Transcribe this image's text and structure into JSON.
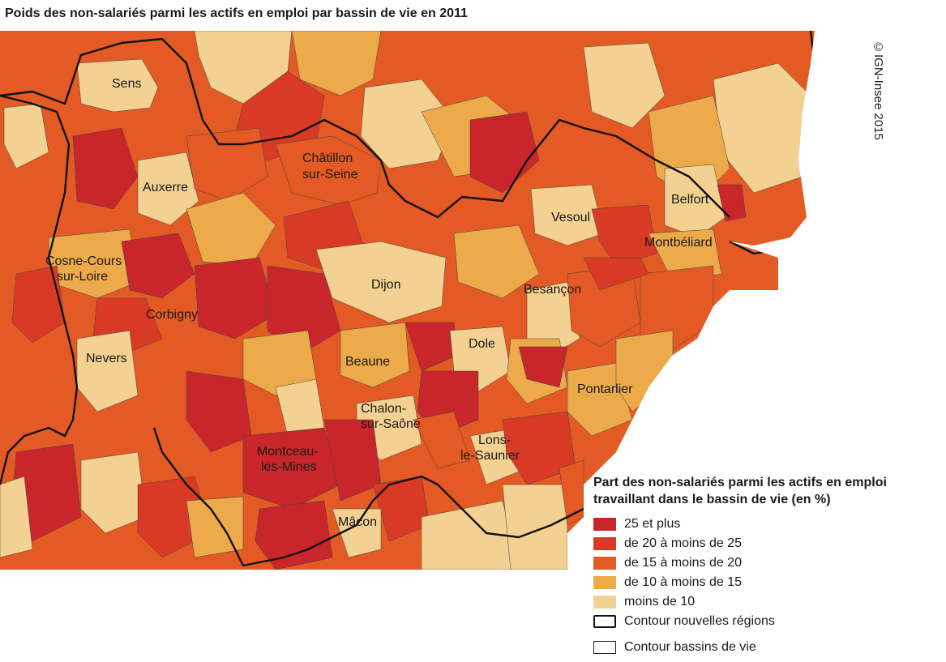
{
  "title": "Poids des non-salariés parmi les actifs en emploi par bassin de vie en 2011",
  "copyright": "©IGN-Insee 2015",
  "colors": {
    "c25": "#c8262a",
    "c20": "#d93a25",
    "c15": "#e45a24",
    "c10": "#ecaa4a",
    "c0": "#f2d193",
    "boundary": "#111111"
  },
  "legend": {
    "title": "Part des non-salariés parmi les actifs en emploi travaillant dans le bassin de vie (en %)",
    "items": [
      {
        "label": "25 et plus",
        "color": "#c8262a"
      },
      {
        "label": "de 20 à moins de 25",
        "color": "#d93a25"
      },
      {
        "label": "de 15 à moins de 20",
        "color": "#e45a24"
      },
      {
        "label": "de 10 à moins de 15",
        "color": "#ecaa4a"
      },
      {
        "label": "moins de 10",
        "color": "#f2d193"
      }
    ],
    "region_contour": "Contour nouvelles régions",
    "basin_contour": "Contour bassins de vie"
  },
  "cities": [
    {
      "id": "sens",
      "label": "Sens"
    },
    {
      "id": "auxerre",
      "label": "Auxerre"
    },
    {
      "id": "chatillon",
      "lines": [
        "Châtillon",
        "sur-Seine"
      ]
    },
    {
      "id": "cosne",
      "lines": [
        "Cosne-Cours",
        "sur-Loire"
      ]
    },
    {
      "id": "dijon",
      "label": "Dijon"
    },
    {
      "id": "corbigny",
      "label": "Corbigny"
    },
    {
      "id": "nevers",
      "label": "Nevers"
    },
    {
      "id": "beaune",
      "label": "Beaune"
    },
    {
      "id": "vesoul",
      "label": "Vesoul"
    },
    {
      "id": "belfort",
      "label": "Belfort"
    },
    {
      "id": "montbeliard",
      "label": "Montbéliard"
    },
    {
      "id": "besancon",
      "label": "Besançon"
    },
    {
      "id": "dole",
      "label": "Dole"
    },
    {
      "id": "pontarlier",
      "label": "Pontarlier"
    },
    {
      "id": "chalon",
      "lines": [
        "Chalon-",
        "sur-Saône"
      ]
    },
    {
      "id": "montceau",
      "lines": [
        "Montceau-",
        "les-Mines"
      ]
    },
    {
      "id": "lons",
      "lines": [
        "Lons-",
        "le-Saunier"
      ]
    },
    {
      "id": "macon",
      "label": "Mâcon"
    }
  ]
}
